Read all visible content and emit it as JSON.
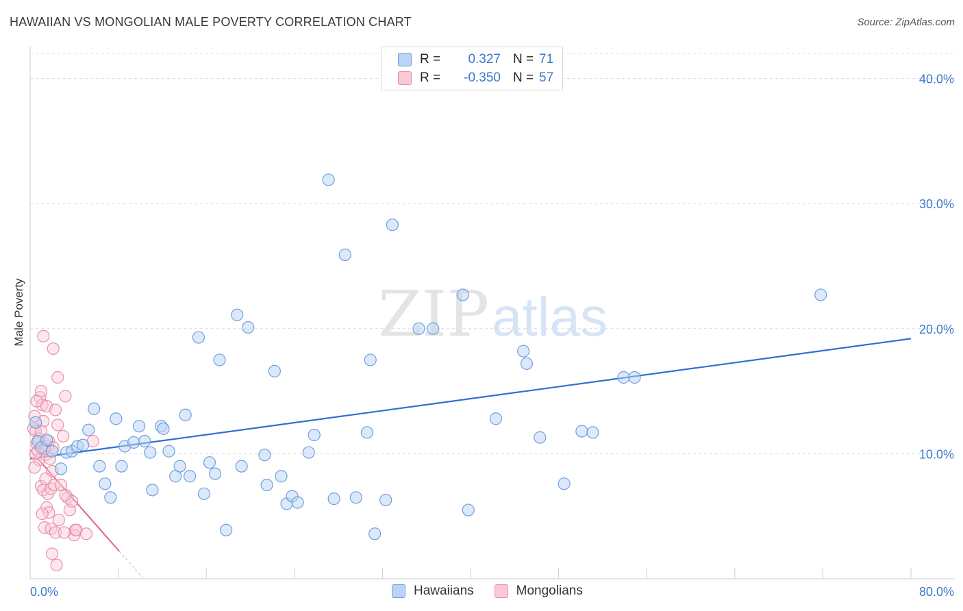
{
  "header": {
    "title": "HAWAIIAN VS MONGOLIAN MALE POVERTY CORRELATION CHART",
    "source": "Source: ZipAtlas.com"
  },
  "watermark": {
    "zip": "ZIP",
    "atlas": "atlas"
  },
  "colors": {
    "blue_fill": "#b9d4f5",
    "blue_stroke": "#6f9fdc",
    "blue_line": "#2f6fd1",
    "pink_fill": "#f9c9d6",
    "pink_stroke": "#ea8fa9",
    "pink_line": "#e4628c",
    "axis_text": "#3b78c9"
  },
  "legend": {
    "rows": [
      {
        "r_label": "R =",
        "r_value": "0.327",
        "n_label": "N =",
        "n_value": "71"
      },
      {
        "r_label": "R =",
        "r_value": "-0.350",
        "n_label": "N =",
        "n_value": "57"
      }
    ]
  },
  "bottom_legend": {
    "series1": "Hawaiians",
    "series2": "Mongolians"
  },
  "chart_data": {
    "type": "scatter",
    "title": "HAWAIIAN VS MONGOLIAN MALE POVERTY CORRELATION CHART",
    "xlabel": "",
    "ylabel": "Male Poverty",
    "xlim": [
      0,
      80
    ],
    "ylim": [
      0,
      42
    ],
    "x_tick_labels": [
      "0.0%",
      "80.0%"
    ],
    "y_ticks": [
      10,
      20,
      30,
      40
    ],
    "y_tick_labels": [
      "10.0%",
      "20.0%",
      "30.0%",
      "40.0%"
    ],
    "series": [
      {
        "name": "Hawaiians",
        "r": 0.327,
        "n": 71,
        "trend": {
          "x": [
            0,
            80
          ],
          "y": [
            9.6,
            19.2
          ]
        },
        "points": [
          [
            0.5,
            12.5
          ],
          [
            0.7,
            11.0
          ],
          [
            1.0,
            10.5
          ],
          [
            1.5,
            11.1
          ],
          [
            2.0,
            10.2
          ],
          [
            2.8,
            8.8
          ],
          [
            3.3,
            10.1
          ],
          [
            3.8,
            10.2
          ],
          [
            4.3,
            10.6
          ],
          [
            4.8,
            10.7
          ],
          [
            5.3,
            11.9
          ],
          [
            5.8,
            13.6
          ],
          [
            6.3,
            9.0
          ],
          [
            6.8,
            7.6
          ],
          [
            7.3,
            6.5
          ],
          [
            7.8,
            12.8
          ],
          [
            8.3,
            9.0
          ],
          [
            8.6,
            10.6
          ],
          [
            9.4,
            10.9
          ],
          [
            9.9,
            12.2
          ],
          [
            10.4,
            11.0
          ],
          [
            10.9,
            10.1
          ],
          [
            11.1,
            7.1
          ],
          [
            11.9,
            12.2
          ],
          [
            12.1,
            12.0
          ],
          [
            12.6,
            10.2
          ],
          [
            13.2,
            8.2
          ],
          [
            13.6,
            9.0
          ],
          [
            14.1,
            13.1
          ],
          [
            14.5,
            8.2
          ],
          [
            15.3,
            19.3
          ],
          [
            15.8,
            6.8
          ],
          [
            16.3,
            9.3
          ],
          [
            16.8,
            8.4
          ],
          [
            17.2,
            17.5
          ],
          [
            17.8,
            3.9
          ],
          [
            18.8,
            21.1
          ],
          [
            19.2,
            9.0
          ],
          [
            19.8,
            20.1
          ],
          [
            21.3,
            9.9
          ],
          [
            21.5,
            7.5
          ],
          [
            22.2,
            16.6
          ],
          [
            22.8,
            8.2
          ],
          [
            23.3,
            6.0
          ],
          [
            23.8,
            6.6
          ],
          [
            24.3,
            6.1
          ],
          [
            25.3,
            10.1
          ],
          [
            25.8,
            11.5
          ],
          [
            27.1,
            31.9
          ],
          [
            27.6,
            6.4
          ],
          [
            28.6,
            25.9
          ],
          [
            29.6,
            6.5
          ],
          [
            30.6,
            11.7
          ],
          [
            30.9,
            17.5
          ],
          [
            31.3,
            3.6
          ],
          [
            32.3,
            6.3
          ],
          [
            32.9,
            28.3
          ],
          [
            35.3,
            20.0
          ],
          [
            36.6,
            20.0
          ],
          [
            39.3,
            22.7
          ],
          [
            39.8,
            5.5
          ],
          [
            42.3,
            12.8
          ],
          [
            44.8,
            18.2
          ],
          [
            45.1,
            17.2
          ],
          [
            46.3,
            11.3
          ],
          [
            48.5,
            7.6
          ],
          [
            50.1,
            11.8
          ],
          [
            51.1,
            11.7
          ],
          [
            53.9,
            16.1
          ],
          [
            54.9,
            16.1
          ],
          [
            71.8,
            22.7
          ]
        ]
      },
      {
        "name": "Mongolians",
        "r": -0.35,
        "n": 57,
        "trend": {
          "x": [
            0,
            8.1
          ],
          "y": [
            10.3,
            2.2
          ]
        },
        "trend_extension": {
          "x": [
            8.1,
            10.2
          ],
          "y": [
            2.2,
            0.1
          ]
        },
        "points": [
          [
            0.3,
            12.0
          ],
          [
            0.4,
            13.0
          ],
          [
            0.5,
            11.8
          ],
          [
            0.6,
            10.8
          ],
          [
            0.7,
            10.2
          ],
          [
            0.8,
            9.5
          ],
          [
            0.9,
            14.5
          ],
          [
            1.0,
            15.0
          ],
          [
            1.1,
            13.9
          ],
          [
            1.2,
            12.6
          ],
          [
            1.3,
            10.8
          ],
          [
            1.4,
            9.9
          ],
          [
            0.4,
            8.9
          ],
          [
            0.5,
            10.0
          ],
          [
            1.5,
            13.8
          ],
          [
            1.6,
            10.6
          ],
          [
            1.8,
            9.6
          ],
          [
            2.0,
            8.6
          ],
          [
            1.7,
            11.0
          ],
          [
            2.1,
            10.5
          ],
          [
            2.3,
            13.5
          ],
          [
            2.5,
            12.3
          ],
          [
            1.0,
            7.4
          ],
          [
            1.2,
            7.1
          ],
          [
            1.4,
            8.0
          ],
          [
            1.6,
            6.8
          ],
          [
            1.9,
            7.2
          ],
          [
            2.2,
            7.5
          ],
          [
            1.5,
            5.7
          ],
          [
            1.7,
            5.3
          ],
          [
            1.1,
            5.2
          ],
          [
            1.3,
            4.1
          ],
          [
            1.9,
            4.0
          ],
          [
            2.3,
            3.7
          ],
          [
            2.6,
            4.7
          ],
          [
            1.2,
            19.4
          ],
          [
            2.1,
            18.4
          ],
          [
            2.5,
            16.1
          ],
          [
            3.2,
            14.6
          ],
          [
            3.0,
            11.4
          ],
          [
            3.4,
            6.5
          ],
          [
            3.6,
            5.5
          ],
          [
            3.8,
            6.2
          ],
          [
            4.1,
            3.9
          ],
          [
            4.0,
            3.5
          ],
          [
            4.2,
            3.9
          ],
          [
            5.7,
            11.0
          ],
          [
            2.0,
            2.0
          ],
          [
            2.4,
            1.1
          ],
          [
            2.8,
            7.5
          ],
          [
            3.2,
            6.7
          ],
          [
            3.1,
            3.7
          ],
          [
            5.1,
            3.6
          ],
          [
            0.6,
            14.2
          ],
          [
            0.8,
            11.2
          ],
          [
            1.0,
            11.8
          ],
          [
            1.3,
            10.4
          ]
        ]
      }
    ]
  }
}
